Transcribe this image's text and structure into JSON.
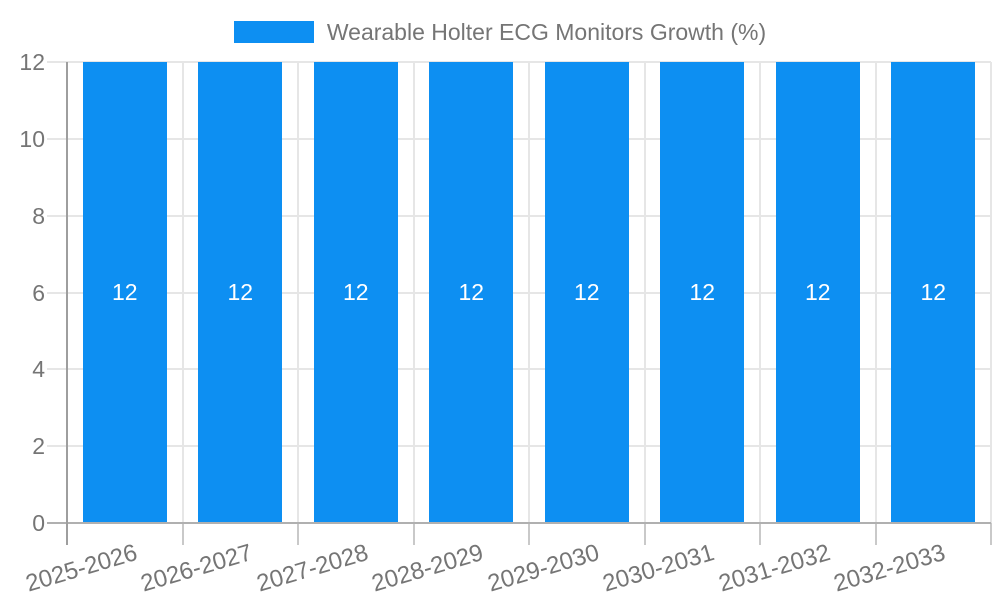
{
  "legend": {
    "label": "Wearable Holter ECG Monitors Growth (%)"
  },
  "chart_data": {
    "type": "bar",
    "title": "Wearable Holter ECG Monitors Growth (%)",
    "categories": [
      "2025-2026",
      "2026-2027",
      "2027-2028",
      "2028-2029",
      "2029-2030",
      "2030-2031",
      "2031-2032",
      "2032-2033"
    ],
    "series": [
      {
        "name": "Wearable Holter ECG Monitors Growth (%)",
        "values": [
          12,
          12,
          12,
          12,
          12,
          12,
          12,
          12
        ]
      }
    ],
    "bar_value_labels": [
      "12",
      "12",
      "12",
      "12",
      "12",
      "12",
      "12",
      "12"
    ],
    "xlabel": "",
    "ylabel": "",
    "ylim": [
      0,
      12
    ],
    "yticks": [
      0,
      2,
      4,
      6,
      8,
      10,
      12
    ],
    "grid": true,
    "legend_position": "top",
    "x_tick_rotation_deg": -16.5,
    "colors": {
      "bar": "#0d8ff2",
      "bar_value_text": "#ffffff",
      "axis_text": "#757575",
      "gridline": "#e6e6e6",
      "baseline": "#b0b0b0",
      "y_axis_line": "#9e9e9e",
      "tick": "#c9c9c9",
      "background": "#ffffff"
    }
  }
}
